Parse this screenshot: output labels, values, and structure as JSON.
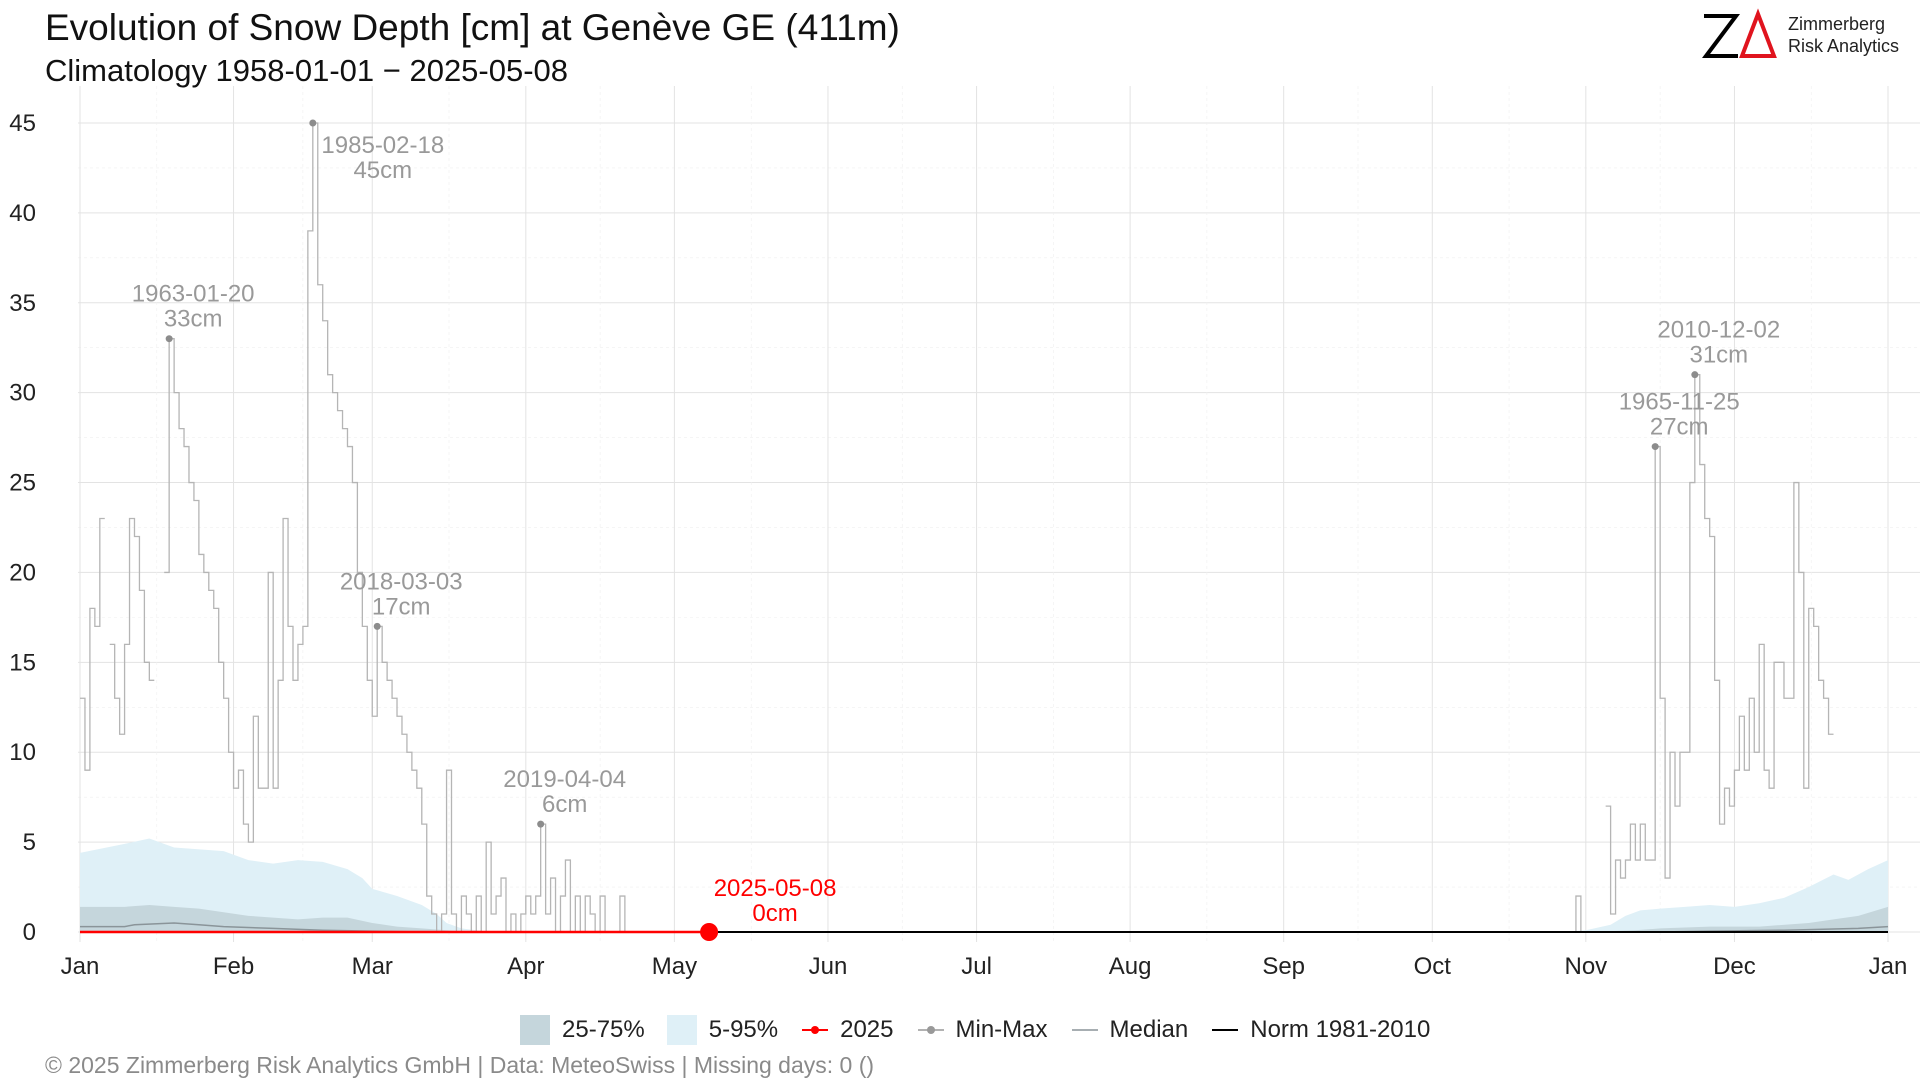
{
  "header": {
    "title": "Evolution of Snow Depth [cm] at Genève  GE (411m)",
    "subtitle": "Climatology 1958-01-01 − 2025-05-08"
  },
  "logo": {
    "mark": "ZΔ",
    "line1": "Zimmerberg",
    "line2": "Risk Analytics"
  },
  "legend": {
    "band_25_75": "25-75%",
    "band_5_95": "5-95%",
    "current": "2025",
    "minmax": "Min-Max",
    "median": "Median",
    "norm": "Norm 1981-2010"
  },
  "footer": "©  2025 Zimmerberg Risk Analytics GmbH | Data: MeteoSwiss | Missing days: 0 ()",
  "colors": {
    "current": "#ff0000",
    "minmax": "#b5b5b5",
    "band_5_95": "#dff0f7",
    "band_25_75": "#c5d6dc",
    "median": "#8a9499",
    "norm": "#000000",
    "annotation": "#999999"
  },
  "chart_data": {
    "type": "line",
    "x_axis": {
      "ticks": [
        "Jan",
        "Feb",
        "Mar",
        "Apr",
        "May",
        "Jun",
        "Jul",
        "Aug",
        "Sep",
        "Oct",
        "Nov",
        "Dec",
        "Jan"
      ],
      "tick_days": [
        1,
        32,
        60,
        91,
        121,
        152,
        182,
        213,
        244,
        274,
        305,
        335,
        366
      ]
    },
    "y_axis": {
      "ticks": [
        0,
        5,
        10,
        15,
        20,
        25,
        30,
        35,
        40,
        45
      ],
      "ylim": [
        0,
        46.5
      ]
    },
    "grid": true,
    "legend_position": "bottom",
    "series": [
      {
        "name": "Min-Max",
        "type": "step",
        "note": "daily maximum snow depth (cm), day-of-year; 0 elsewhere",
        "points": [
          [
            1,
            13
          ],
          [
            2,
            9
          ],
          [
            3,
            18
          ],
          [
            4,
            17
          ],
          [
            5,
            23
          ],
          [
            7,
            16
          ],
          [
            8,
            13
          ],
          [
            9,
            11
          ],
          [
            10,
            16
          ],
          [
            11,
            23
          ],
          [
            12,
            22
          ],
          [
            13,
            19
          ],
          [
            14,
            15
          ],
          [
            15,
            14
          ],
          [
            18,
            20
          ],
          [
            19,
            33
          ],
          [
            20,
            30
          ],
          [
            21,
            28
          ],
          [
            22,
            27
          ],
          [
            23,
            25
          ],
          [
            24,
            24
          ],
          [
            25,
            21
          ],
          [
            26,
            20
          ],
          [
            27,
            19
          ],
          [
            28,
            18
          ],
          [
            29,
            15
          ],
          [
            30,
            13
          ],
          [
            31,
            10
          ],
          [
            32,
            8
          ],
          [
            33,
            9
          ],
          [
            34,
            6
          ],
          [
            35,
            5
          ],
          [
            36,
            12
          ],
          [
            37,
            8
          ],
          [
            38,
            8
          ],
          [
            39,
            20
          ],
          [
            40,
            8
          ],
          [
            41,
            14
          ],
          [
            42,
            23
          ],
          [
            43,
            17
          ],
          [
            44,
            14
          ],
          [
            45,
            16
          ],
          [
            46,
            17
          ],
          [
            47,
            39
          ],
          [
            48,
            45
          ],
          [
            49,
            36
          ],
          [
            50,
            34
          ],
          [
            51,
            31
          ],
          [
            52,
            30
          ],
          [
            53,
            29
          ],
          [
            54,
            28
          ],
          [
            55,
            27
          ],
          [
            56,
            25
          ],
          [
            57,
            20
          ],
          [
            58,
            17
          ],
          [
            59,
            14
          ],
          [
            60,
            12
          ],
          [
            61,
            17
          ],
          [
            62,
            15
          ],
          [
            63,
            14
          ],
          [
            64,
            13
          ],
          [
            65,
            12
          ],
          [
            66,
            11
          ],
          [
            67,
            10
          ],
          [
            68,
            9
          ],
          [
            69,
            8
          ],
          [
            70,
            6
          ],
          [
            71,
            2
          ],
          [
            72,
            1
          ],
          [
            73,
            0
          ],
          [
            74,
            1
          ],
          [
            75,
            9
          ],
          [
            76,
            1
          ],
          [
            77,
            0
          ],
          [
            78,
            2
          ],
          [
            79,
            1
          ],
          [
            80,
            0
          ],
          [
            81,
            2
          ],
          [
            82,
            0
          ],
          [
            83,
            5
          ],
          [
            84,
            1
          ],
          [
            85,
            2
          ],
          [
            86,
            3
          ],
          [
            87,
            0
          ],
          [
            88,
            1
          ],
          [
            89,
            0
          ],
          [
            90,
            1
          ],
          [
            91,
            2
          ],
          [
            92,
            1
          ],
          [
            93,
            2
          ],
          [
            94,
            6
          ],
          [
            95,
            1
          ],
          [
            96,
            3
          ],
          [
            97,
            0
          ],
          [
            98,
            2
          ],
          [
            99,
            4
          ],
          [
            100,
            0
          ],
          [
            101,
            2
          ],
          [
            102,
            0
          ],
          [
            103,
            2
          ],
          [
            104,
            1
          ],
          [
            105,
            0
          ],
          [
            106,
            2
          ],
          [
            107,
            0
          ],
          [
            108,
            0
          ],
          [
            109,
            0
          ],
          [
            110,
            2
          ],
          [
            111,
            0
          ],
          [
            300,
            0
          ],
          [
            302,
            0
          ],
          [
            303,
            2
          ],
          [
            304,
            0
          ],
          [
            309,
            7
          ],
          [
            310,
            1
          ],
          [
            311,
            4
          ],
          [
            312,
            3
          ],
          [
            313,
            4
          ],
          [
            314,
            6
          ],
          [
            315,
            4
          ],
          [
            316,
            6
          ],
          [
            317,
            4
          ],
          [
            318,
            4
          ],
          [
            319,
            27
          ],
          [
            320,
            13
          ],
          [
            321,
            3
          ],
          [
            322,
            10
          ],
          [
            323,
            7
          ],
          [
            324,
            10
          ],
          [
            325,
            10
          ],
          [
            326,
            25
          ],
          [
            327,
            31
          ],
          [
            328,
            26
          ],
          [
            329,
            23
          ],
          [
            330,
            22
          ],
          [
            331,
            14
          ],
          [
            332,
            6
          ],
          [
            333,
            8
          ],
          [
            334,
            7
          ],
          [
            335,
            9
          ],
          [
            336,
            12
          ],
          [
            337,
            9
          ],
          [
            338,
            13
          ],
          [
            339,
            10
          ],
          [
            340,
            16
          ],
          [
            341,
            9
          ],
          [
            342,
            8
          ],
          [
            343,
            15
          ],
          [
            344,
            15
          ],
          [
            345,
            13
          ],
          [
            346,
            13
          ],
          [
            347,
            25
          ],
          [
            348,
            20
          ],
          [
            349,
            8
          ],
          [
            350,
            18
          ],
          [
            351,
            17
          ],
          [
            352,
            14
          ],
          [
            353,
            13
          ],
          [
            354,
            11
          ]
        ]
      },
      {
        "name": "5-95%",
        "type": "band",
        "points": [
          [
            1,
            4.4
          ],
          [
            10,
            4.9
          ],
          [
            15,
            5.2
          ],
          [
            20,
            4.7
          ],
          [
            30,
            4.5
          ],
          [
            35,
            4.0
          ],
          [
            40,
            3.8
          ],
          [
            45,
            4.0
          ],
          [
            50,
            3.9
          ],
          [
            55,
            3.5
          ],
          [
            58,
            3.0
          ],
          [
            60,
            2.4
          ],
          [
            65,
            2.0
          ],
          [
            70,
            1.5
          ],
          [
            73,
            1.0
          ],
          [
            75,
            0.5
          ],
          [
            78,
            0.2
          ],
          [
            81,
            0.1
          ],
          [
            84,
            0
          ],
          [
            300,
            0
          ],
          [
            305,
            0.1
          ],
          [
            310,
            0.4
          ],
          [
            313,
            0.9
          ],
          [
            316,
            1.2
          ],
          [
            320,
            1.3
          ],
          [
            325,
            1.4
          ],
          [
            330,
            1.5
          ],
          [
            335,
            1.4
          ],
          [
            340,
            1.6
          ],
          [
            345,
            1.9
          ],
          [
            350,
            2.5
          ],
          [
            355,
            3.2
          ],
          [
            358,
            2.9
          ],
          [
            362,
            3.5
          ],
          [
            366,
            4.0
          ]
        ]
      },
      {
        "name": "25-75%",
        "type": "band",
        "points": [
          [
            1,
            1.4
          ],
          [
            10,
            1.4
          ],
          [
            15,
            1.5
          ],
          [
            20,
            1.4
          ],
          [
            25,
            1.3
          ],
          [
            30,
            1.1
          ],
          [
            35,
            0.9
          ],
          [
            40,
            0.8
          ],
          [
            45,
            0.7
          ],
          [
            50,
            0.8
          ],
          [
            55,
            0.8
          ],
          [
            60,
            0.5
          ],
          [
            65,
            0.3
          ],
          [
            70,
            0.2
          ],
          [
            75,
            0.1
          ],
          [
            80,
            0
          ],
          [
            305,
            0
          ],
          [
            315,
            0.1
          ],
          [
            320,
            0.2
          ],
          [
            330,
            0.3
          ],
          [
            340,
            0.3
          ],
          [
            350,
            0.5
          ],
          [
            355,
            0.7
          ],
          [
            360,
            0.9
          ],
          [
            366,
            1.4
          ]
        ]
      },
      {
        "name": "Median",
        "type": "line",
        "points": [
          [
            1,
            0.3
          ],
          [
            10,
            0.3
          ],
          [
            12,
            0.4
          ],
          [
            20,
            0.5
          ],
          [
            25,
            0.4
          ],
          [
            30,
            0.3
          ],
          [
            40,
            0.2
          ],
          [
            50,
            0.1
          ],
          [
            60,
            0.05
          ],
          [
            70,
            0
          ],
          [
            320,
            0
          ],
          [
            330,
            0.05
          ],
          [
            345,
            0.1
          ],
          [
            360,
            0.2
          ],
          [
            366,
            0.3
          ]
        ]
      },
      {
        "name": "Norm 1981-2010",
        "type": "line",
        "points": [
          [
            1,
            0.1
          ],
          [
            50,
            0.05
          ],
          [
            80,
            0
          ],
          [
            330,
            0
          ],
          [
            366,
            0.1
          ]
        ]
      },
      {
        "name": "2025",
        "type": "line",
        "points": [
          [
            1,
            0
          ],
          [
            128,
            0
          ]
        ]
      }
    ],
    "annotations": [
      {
        "x": 19,
        "y": 33,
        "date": "1963-01-20",
        "value": "33cm",
        "anchor": "above"
      },
      {
        "x": 48,
        "y": 45,
        "date": "1985-02-18",
        "value": "45cm",
        "anchor": "right"
      },
      {
        "x": 61,
        "y": 17,
        "date": "2018-03-03",
        "value": "17cm",
        "anchor": "above"
      },
      {
        "x": 94,
        "y": 6,
        "date": "2019-04-04",
        "value": "6cm",
        "anchor": "above"
      },
      {
        "x": 319,
        "y": 27,
        "date": "1965-11-25",
        "value": "27cm",
        "anchor": "above"
      },
      {
        "x": 327,
        "y": 31,
        "date": "2010-12-02",
        "value": "31cm",
        "anchor": "above"
      },
      {
        "x": 128,
        "y": 0,
        "date": "2025-05-08",
        "value": "0cm",
        "anchor": "above",
        "current": true
      }
    ]
  }
}
